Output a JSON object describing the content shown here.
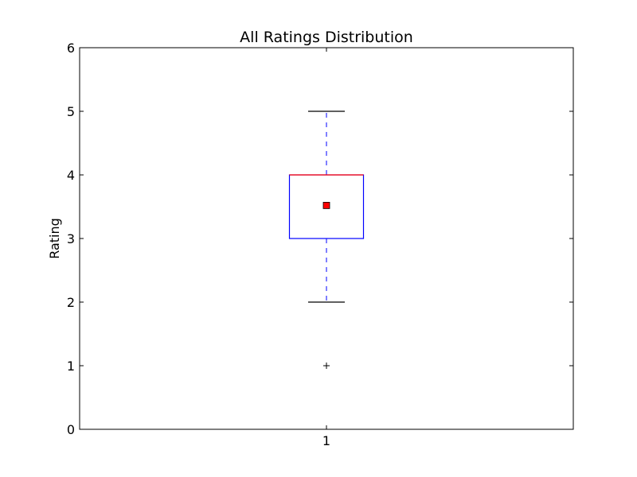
{
  "chart_data": {
    "type": "box",
    "title": "All Ratings Distribution",
    "xlabel": "",
    "ylabel": "Rating",
    "ylim": [
      0,
      6
    ],
    "yticks": [
      "0",
      "1",
      "2",
      "3",
      "4",
      "5",
      "6"
    ],
    "categories": [
      "1"
    ],
    "boxes": [
      {
        "category": "1",
        "whisker_low": 2,
        "q1": 3,
        "median": 4,
        "q3": 4,
        "whisker_high": 5,
        "mean": 3.52,
        "outliers": [
          1
        ]
      }
    ],
    "colors": {
      "box": "#0000ff",
      "whisker": "#0000ff",
      "cap": "#000000",
      "median": "#ff0000",
      "mean_marker": "#ff0000",
      "outlier": "#000000"
    },
    "grid": false
  }
}
